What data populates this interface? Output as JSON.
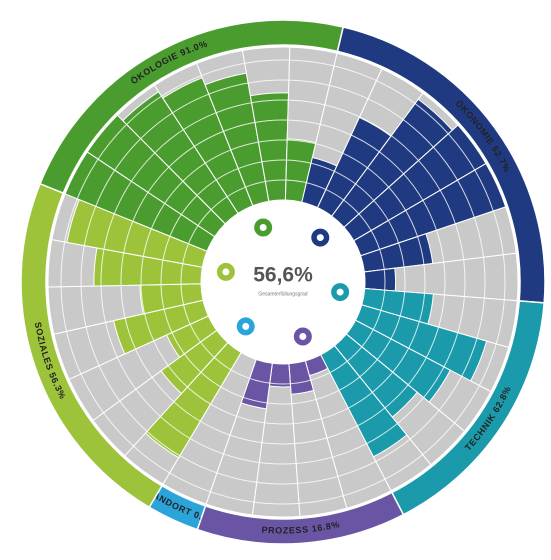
{
  "chart_data": {
    "type": "radial",
    "total": {
      "value": 56.6,
      "value_label": "56,6%",
      "label": "Gesamterfüllungsgrad"
    },
    "ylim": [
      0,
      100
    ],
    "series": [
      {
        "name": "ÖKOLOGIE",
        "value": 91.0,
        "value_label": "91.0%",
        "color": "#4b9c2f",
        "values": [
          100,
          100,
          95,
          90,
          85,
          70,
          40
        ]
      },
      {
        "name": "ÖKONOMIE",
        "value": 52.7,
        "value_label": "52.7%",
        "color": "#1f3a80",
        "values": [
          30,
          65,
          95,
          100,
          100,
          45,
          20
        ]
      },
      {
        "name": "TECHNIK",
        "value": 62.8,
        "value_label": "62.8%",
        "color": "#1a9aab",
        "values": [
          45,
          85,
          70,
          60,
          75
        ]
      },
      {
        "name": "PROZESS",
        "value": 16.8,
        "value_label": "16.8%",
        "color": "#6a55a5",
        "values": [
          10,
          20,
          15,
          30
        ]
      },
      {
        "name": "STANDORT",
        "value": 0.0,
        "value_label": "0.0%",
        "color": "#2ba4da",
        "values": [
          0
        ]
      },
      {
        "name": "SOZIALES",
        "value": 56.3,
        "value_label": "56.3%",
        "color": "#9dc33b",
        "values": [
          80,
          45,
          30,
          60,
          40,
          70,
          90
        ]
      }
    ]
  }
}
